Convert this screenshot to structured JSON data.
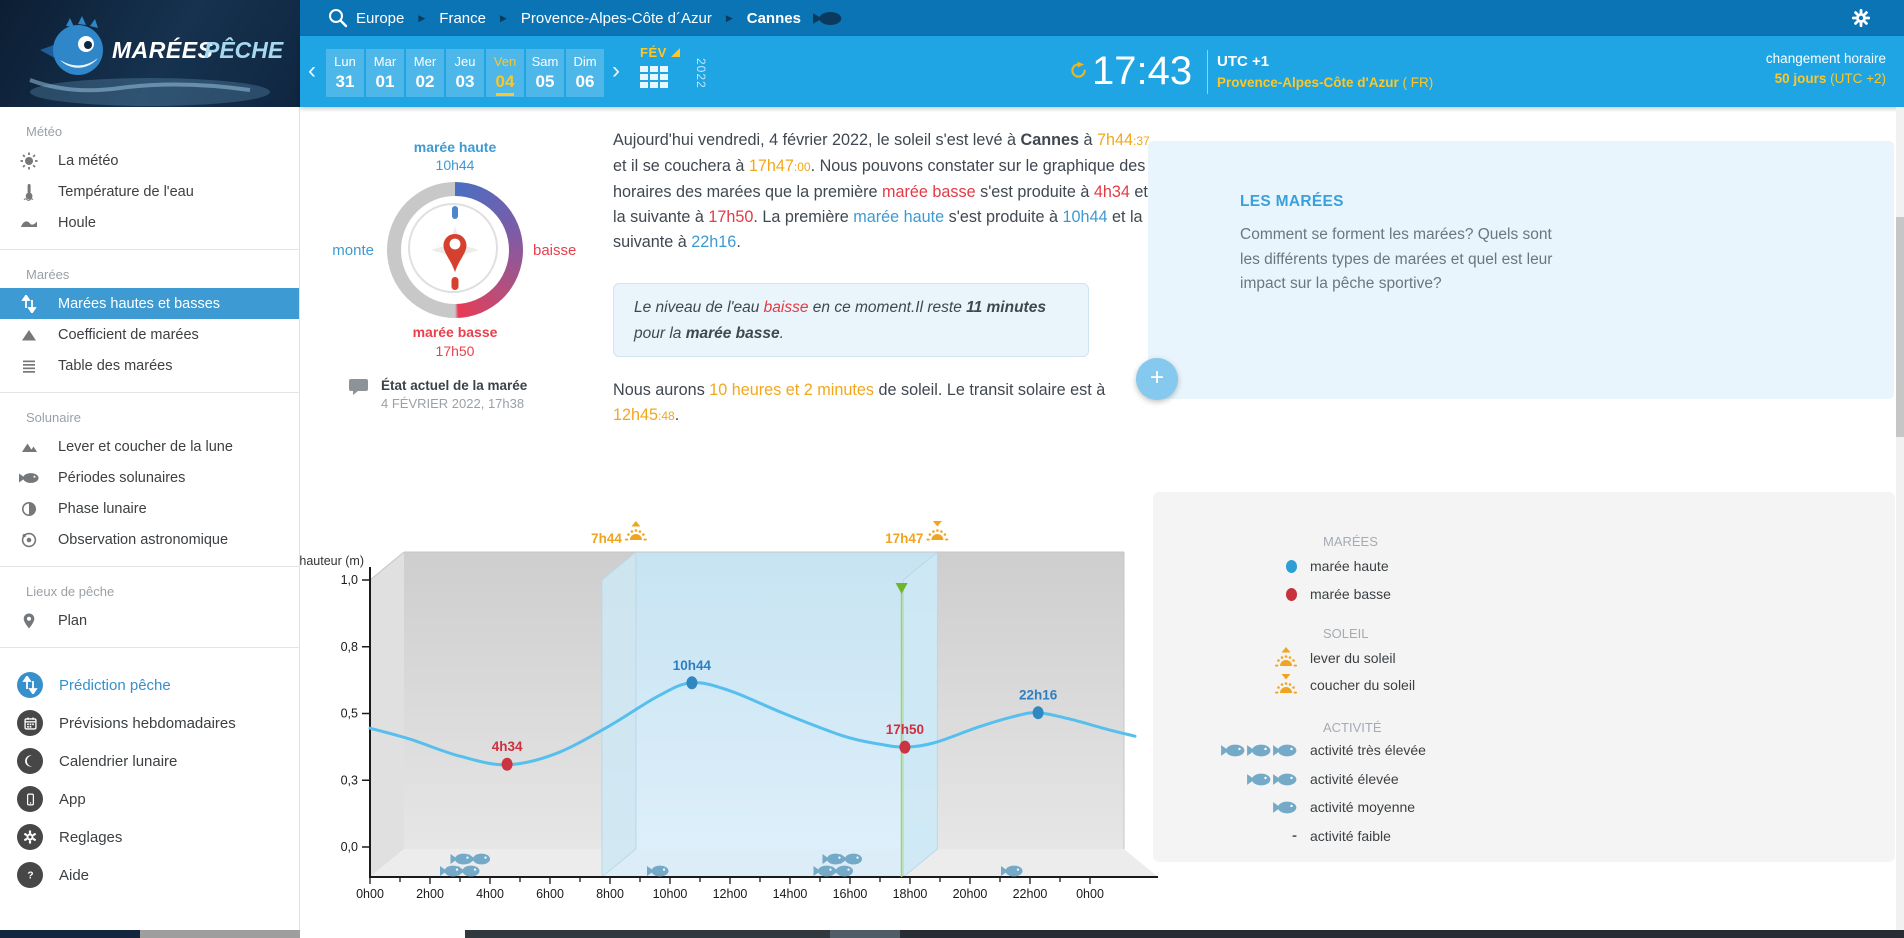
{
  "colors": {
    "topbar_dark_blue": "#0b74b5",
    "topbar_light_blue": "#1fa4e4",
    "highlight_yellow": "#fdc727",
    "accent_blue": "#3d9ad2",
    "accent_red": "#e23b45",
    "accent_orange": "#f2a71b",
    "current_time_green": "#7bc142",
    "curve_blue": "#56bfee"
  },
  "icons": {
    "search": "magnifier",
    "gear": "settings-gear",
    "breadcrumb_fish": "fish-right",
    "refresh": "circular-arrow",
    "calendar": "month-grid",
    "chat": "speech-bubble"
  },
  "topbar": {
    "breadcrumb": [
      "Europe",
      "France",
      "Provence-Alpes-Côte d´Azur",
      "Cannes"
    ]
  },
  "day_bar": {
    "days": [
      {
        "name": "Lun",
        "num": "31"
      },
      {
        "name": "Mar",
        "num": "01"
      },
      {
        "name": "Mer",
        "num": "02"
      },
      {
        "name": "Jeu",
        "num": "03"
      },
      {
        "name": "Ven",
        "num": "04"
      },
      {
        "name": "Sam",
        "num": "05"
      },
      {
        "name": "Dim",
        "num": "06"
      }
    ],
    "selected_index": 4,
    "month_label": "FÉV",
    "year_label": "2022",
    "clock": {
      "time": "17:43",
      "utc": "UTC +1",
      "region": "Provence-Alpes-Côte d'Azur",
      "region_suffix": " ( FR)"
    },
    "timechange": {
      "label": "changement horaire",
      "value": "50 jours",
      "suffix": " (UTC +2)"
    }
  },
  "sidebar": {
    "sections": [
      {
        "title": "Météo",
        "items": [
          {
            "label": "La météo",
            "icon": "sun-icon"
          },
          {
            "label": "Température de l'eau",
            "icon": "thermometer-icon"
          },
          {
            "label": "Houle",
            "icon": "wave-icon"
          }
        ]
      },
      {
        "title": "Marées",
        "items": [
          {
            "label": "Marées hautes et basses",
            "icon": "tide-arrows-icon",
            "selected": true
          },
          {
            "label": "Coefficient de marées",
            "icon": "triangle-icon"
          },
          {
            "label": "Table des marées",
            "icon": "table-lines-icon"
          }
        ]
      },
      {
        "title": "Solunaire",
        "items": [
          {
            "label": "Lever et coucher de la lune",
            "icon": "mountains-icon"
          },
          {
            "label": "Périodes solunaires",
            "icon": "fish-icon"
          },
          {
            "label": "Phase lunaire",
            "icon": "half-moon-icon"
          },
          {
            "label": "Observation astronomique",
            "icon": "orbit-icon"
          }
        ]
      },
      {
        "title": "Lieux de pêche",
        "items": [
          {
            "label": "Plan",
            "icon": "map-pin-icon"
          }
        ]
      }
    ],
    "footer": [
      {
        "label": "Prédiction pêche",
        "icon": "tide-arrows-icon",
        "accent": true
      },
      {
        "label": "Prévisions hebdomadaires",
        "icon": "calendar-icon"
      },
      {
        "label": "Calendrier lunaire",
        "icon": "moon-icon"
      },
      {
        "label": "App",
        "icon": "phone-icon"
      },
      {
        "label": "Reglages",
        "icon": "gear-icon"
      },
      {
        "label": "Aide",
        "icon": "question-icon"
      }
    ]
  },
  "gauge": {
    "high_label": "marée haute",
    "high_time": "10h44",
    "rising_label": "monte",
    "falling_label": "baisse",
    "low_label": "marée basse",
    "low_time": "17h50",
    "state_title": "État actuel de la marée",
    "state_date": "4 FÉVRIER 2022, 17h38"
  },
  "article": {
    "runs": [
      {
        "t": "Aujourd'hui vendredi, 4 février 2022, le soleil s'est levé à ",
        "s": "normal"
      },
      {
        "t": "Cannes",
        "s": "bold"
      },
      {
        "t": " à ",
        "s": "normal"
      },
      {
        "t": "7h44",
        "s": "orange"
      },
      {
        "t": ":37",
        "s": "orange-small"
      },
      {
        "t": " et il se couchera à ",
        "s": "normal"
      },
      {
        "t": "17h47",
        "s": "orange"
      },
      {
        "t": ":00",
        "s": "orange-small"
      },
      {
        "t": ". Nous pouvons constater sur le graphique des horaires des marées que la première ",
        "s": "normal"
      },
      {
        "t": "marée basse",
        "s": "red"
      },
      {
        "t": " s'est produite à ",
        "s": "normal"
      },
      {
        "t": "4h34",
        "s": "red"
      },
      {
        "t": " et la suivante à ",
        "s": "normal"
      },
      {
        "t": "17h50",
        "s": "red"
      },
      {
        "t": ". La première ",
        "s": "normal"
      },
      {
        "t": "marée haute",
        "s": "blue"
      },
      {
        "t": " s'est produite à ",
        "s": "normal"
      },
      {
        "t": "10h44",
        "s": "blue"
      },
      {
        "t": " et la suivante à ",
        "s": "normal"
      },
      {
        "t": "22h16",
        "s": "blue"
      },
      {
        "t": ".",
        "s": "normal"
      }
    ]
  },
  "info_box": {
    "runs": [
      {
        "t": "Le niveau de l'eau ",
        "s": "normal"
      },
      {
        "t": "baisse",
        "s": "red"
      },
      {
        "t": " en ce moment.",
        "s": "normal"
      },
      {
        "t": "Il reste ",
        "s": "normal"
      },
      {
        "t": "11 minutes",
        "s": "bold"
      },
      {
        "t": " pour la ",
        "s": "normal"
      },
      {
        "t": "marée basse",
        "s": "bold"
      },
      {
        "t": ".",
        "s": "normal"
      }
    ]
  },
  "sun_line": {
    "runs": [
      {
        "t": "Nous aurons ",
        "s": "normal"
      },
      {
        "t": "10 heures et 2 minutes",
        "s": "orange"
      },
      {
        "t": " de soleil. Le transit solaire est à ",
        "s": "normal"
      },
      {
        "t": "12h45",
        "s": "orange"
      },
      {
        "t": ":48",
        "s": "orange-small"
      },
      {
        "t": ".",
        "s": "normal"
      }
    ]
  },
  "side_card": {
    "title": "LES MARÉES",
    "text": "Comment se forment les marées? Quels sont les différents types de marées et quel est leur impact sur la pêche sportive?",
    "plus_label": "+"
  },
  "chart_data": {
    "type": "line",
    "ylabel": "hauteur (m)",
    "y_ticks": [
      "1,0",
      "0,8",
      "0,5",
      "0,3",
      "0,0"
    ],
    "x_tick_labels": [
      "0h00",
      "2h00",
      "4h00",
      "6h00",
      "8h00",
      "10h00",
      "12h00",
      "14h00",
      "16h00",
      "18h00",
      "20h00",
      "22h00",
      "0h00"
    ],
    "x_range_hours": [
      0,
      24
    ],
    "points": [
      {
        "label": "4h34",
        "type": "low",
        "hour": 4.57,
        "height_m": 0.31
      },
      {
        "label": "10h44",
        "type": "high",
        "hour": 10.73,
        "height_m": 0.615
      },
      {
        "label": "17h50",
        "type": "low",
        "hour": 17.83,
        "height_m": 0.374
      },
      {
        "label": "22h16",
        "type": "high",
        "hour": 22.27,
        "height_m": 0.503
      }
    ],
    "curve": [
      [
        0,
        0.445
      ],
      [
        1.3,
        0.405
      ],
      [
        3,
        0.34
      ],
      [
        4.57,
        0.308
      ],
      [
        6.2,
        0.35
      ],
      [
        8,
        0.455
      ],
      [
        9.6,
        0.565
      ],
      [
        10.73,
        0.615
      ],
      [
        12,
        0.585
      ],
      [
        13.8,
        0.5
      ],
      [
        15.8,
        0.415
      ],
      [
        17.0,
        0.385
      ],
      [
        17.83,
        0.374
      ],
      [
        18.8,
        0.39
      ],
      [
        20.3,
        0.45
      ],
      [
        21.5,
        0.49
      ],
      [
        22.27,
        0.503
      ],
      [
        23.3,
        0.48
      ],
      [
        24.6,
        0.44
      ],
      [
        25.5,
        0.415
      ]
    ],
    "sunrise": {
      "label": "7h44",
      "hour": 7.73
    },
    "sunset": {
      "label": "17h47",
      "hour": 17.78
    },
    "current_time": {
      "label": "17h43",
      "hour": 17.72
    },
    "day_band_hours": [
      7.73,
      17.78
    ],
    "activity_markers": [
      {
        "h": 2.7,
        "row": "front"
      },
      {
        "h": 3.3,
        "row": "front"
      },
      {
        "h": 3.05,
        "row": "back"
      },
      {
        "h": 3.65,
        "row": "back"
      },
      {
        "h": 9.6,
        "row": "front"
      },
      {
        "h": 15.15,
        "row": "front"
      },
      {
        "h": 15.75,
        "row": "front"
      },
      {
        "h": 15.45,
        "row": "back"
      },
      {
        "h": 16.05,
        "row": "back"
      },
      {
        "h": 21.4,
        "row": "front"
      }
    ]
  },
  "legend": {
    "groups": [
      {
        "title": "MARÉES",
        "items": [
          {
            "icon": "high-tide-dot",
            "label": "marée haute"
          },
          {
            "icon": "low-tide-dot",
            "label": "marée basse"
          }
        ]
      },
      {
        "title": "SOLEIL",
        "items": [
          {
            "icon": "sunrise-icon",
            "label": "lever du soleil"
          },
          {
            "icon": "sunset-icon",
            "label": "coucher du soleil"
          }
        ]
      },
      {
        "title": "ACTIVITÉ",
        "items": [
          {
            "icon": "fish-x3",
            "label": "activité très élevée"
          },
          {
            "icon": "fish-x2",
            "label": "activité élevée"
          },
          {
            "icon": "fish-x1",
            "label": "activité moyenne"
          },
          {
            "icon": "dash",
            "label": "activité faible"
          }
        ]
      }
    ]
  },
  "brand": {
    "name1": "MARÉES",
    "name2": "PÊCHE"
  }
}
